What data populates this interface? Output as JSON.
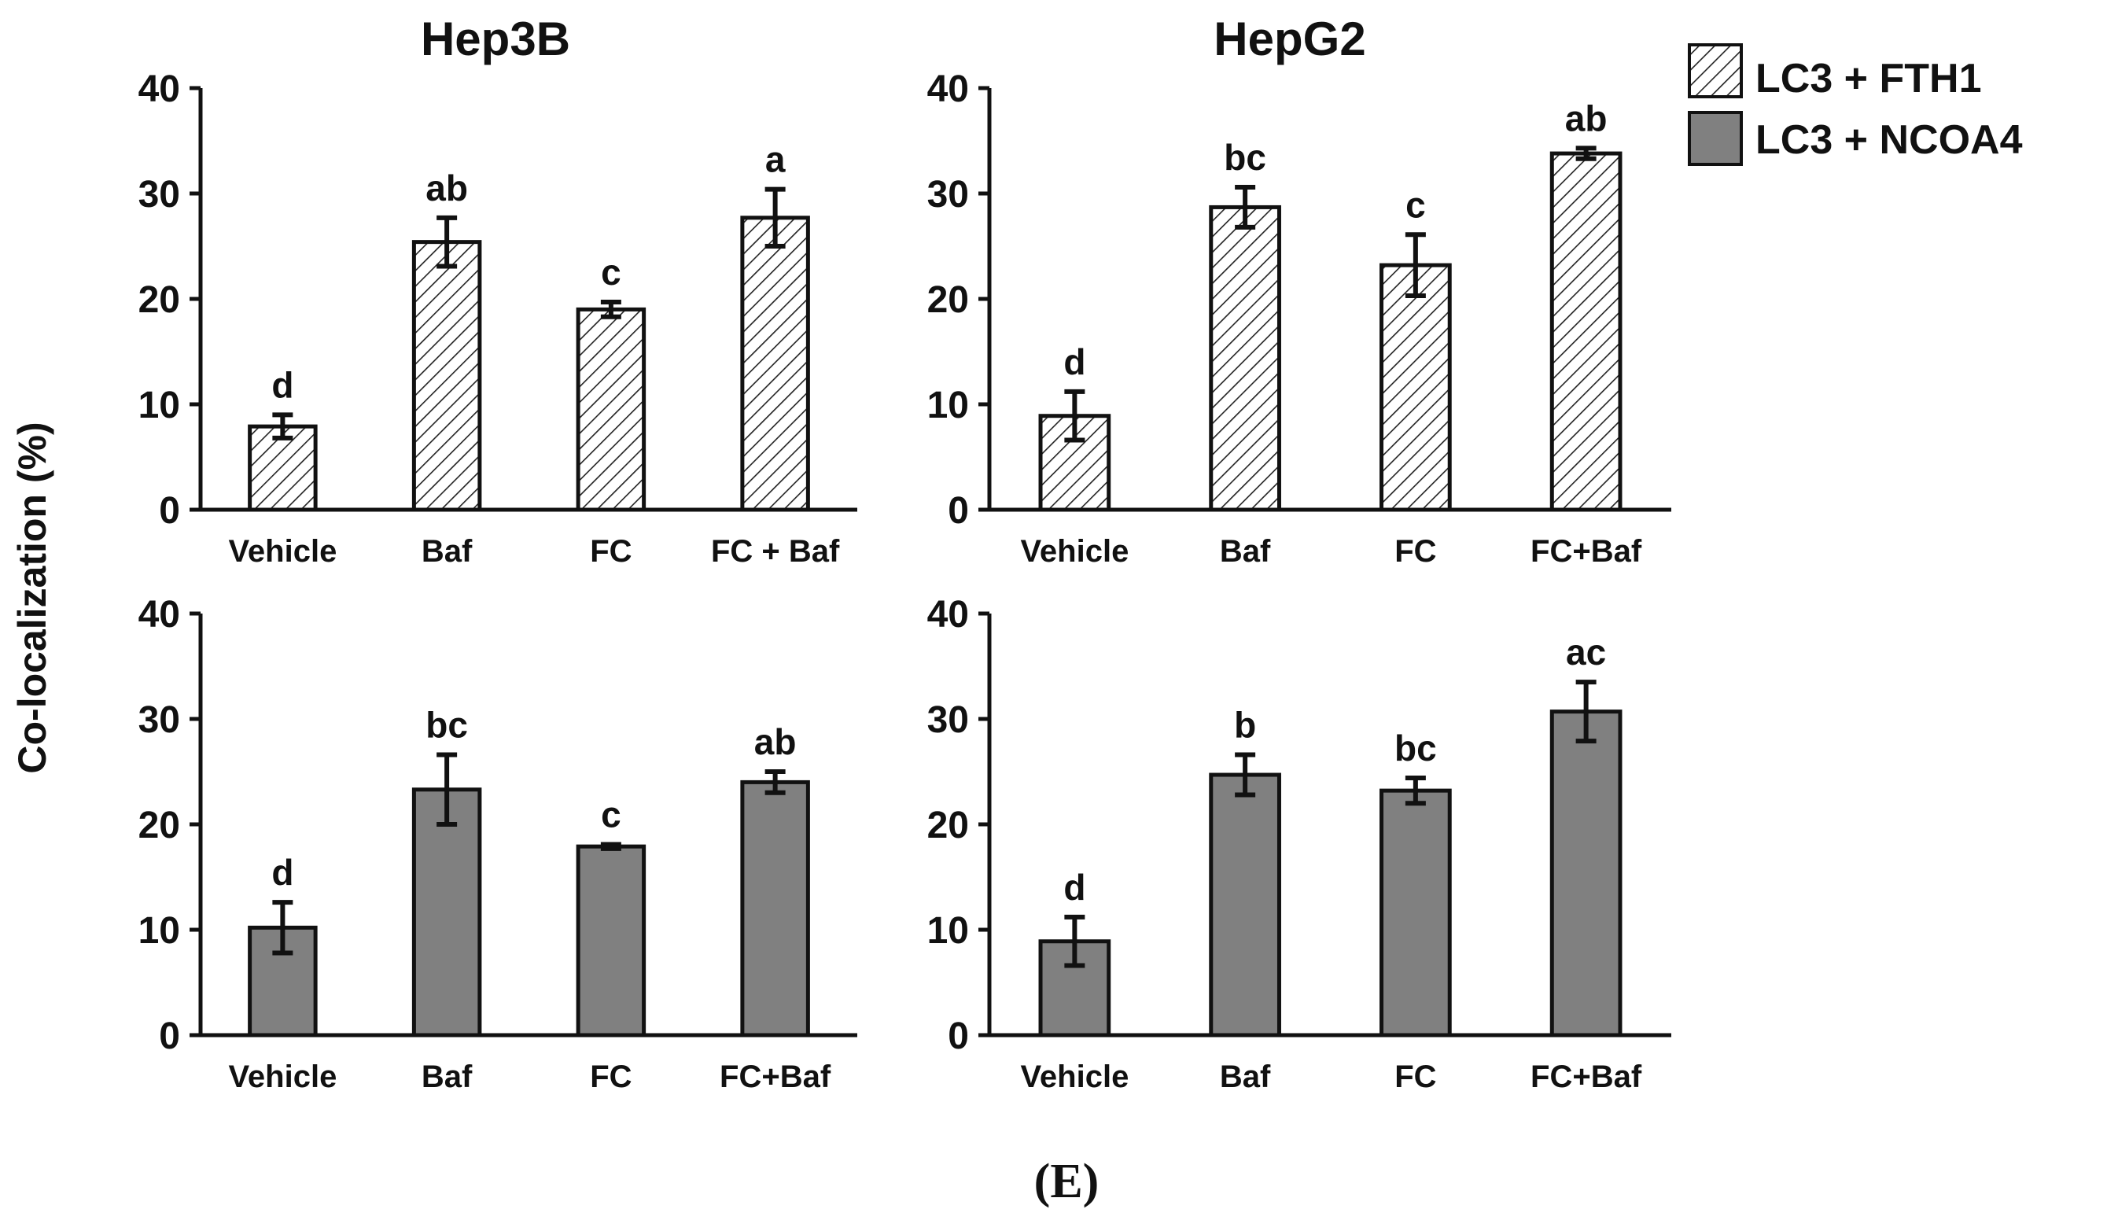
{
  "figure": {
    "y_axis_label": "Co-localization (%)",
    "panel_label": "(E)"
  },
  "legend": {
    "position": "top-right",
    "items": [
      {
        "label": "LC3 + FTH1",
        "style": "hatched"
      },
      {
        "label": "LC3 + NCOA4",
        "style": "solid"
      }
    ]
  },
  "colors": {
    "axis": "#111111",
    "solid_fill": "#808080",
    "hatch_fill": "#ffffff",
    "hatch_line": "#222222"
  },
  "chart_data": [
    {
      "type": "bar",
      "panel": "top-left",
      "title": "Hep3B",
      "series_name": "LC3 + FTH1",
      "style": "hatched",
      "categories": [
        "Vehicle",
        "Baf",
        "FC",
        "FC + Baf"
      ],
      "values": [
        7.9,
        25.4,
        19.0,
        27.7
      ],
      "errors": [
        1.1,
        2.3,
        0.7,
        2.7
      ],
      "significance": [
        "d",
        "ab",
        "c",
        "a"
      ],
      "yticks": [
        "0",
        "10",
        "20",
        "30",
        "40"
      ],
      "ylim": [
        0,
        40
      ]
    },
    {
      "type": "bar",
      "panel": "top-right",
      "title": "HepG2",
      "series_name": "LC3 + FTH1",
      "style": "hatched",
      "categories": [
        "Vehicle",
        "Baf",
        "FC",
        "FC+Baf"
      ],
      "values": [
        8.9,
        28.7,
        23.2,
        33.8
      ],
      "errors": [
        2.3,
        1.9,
        2.9,
        0.5
      ],
      "significance": [
        "d",
        "bc",
        "c",
        "ab"
      ],
      "yticks": [
        "0",
        "10",
        "20",
        "30",
        "40"
      ],
      "ylim": [
        0,
        40
      ]
    },
    {
      "type": "bar",
      "panel": "bottom-left",
      "title": "",
      "series_name": "LC3 + NCOA4",
      "style": "solid",
      "categories": [
        "Vehicle",
        "Baf",
        "FC",
        "FC+Baf"
      ],
      "values": [
        10.2,
        23.3,
        17.9,
        24.0
      ],
      "errors": [
        2.4,
        3.3,
        0.2,
        1.0
      ],
      "significance": [
        "d",
        "bc",
        "c",
        "ab"
      ],
      "yticks": [
        "0",
        "10",
        "20",
        "30",
        "40"
      ],
      "ylim": [
        0,
        40
      ]
    },
    {
      "type": "bar",
      "panel": "bottom-right",
      "title": "",
      "series_name": "LC3 + NCOA4",
      "style": "solid",
      "categories": [
        "Vehicle",
        "Baf",
        "FC",
        "FC+Baf"
      ],
      "values": [
        8.9,
        24.7,
        23.2,
        30.7
      ],
      "errors": [
        2.3,
        1.9,
        1.2,
        2.8
      ],
      "significance": [
        "d",
        "b",
        "bc",
        "ac"
      ],
      "yticks": [
        "0",
        "10",
        "20",
        "30",
        "40"
      ],
      "ylim": [
        0,
        40
      ]
    }
  ]
}
